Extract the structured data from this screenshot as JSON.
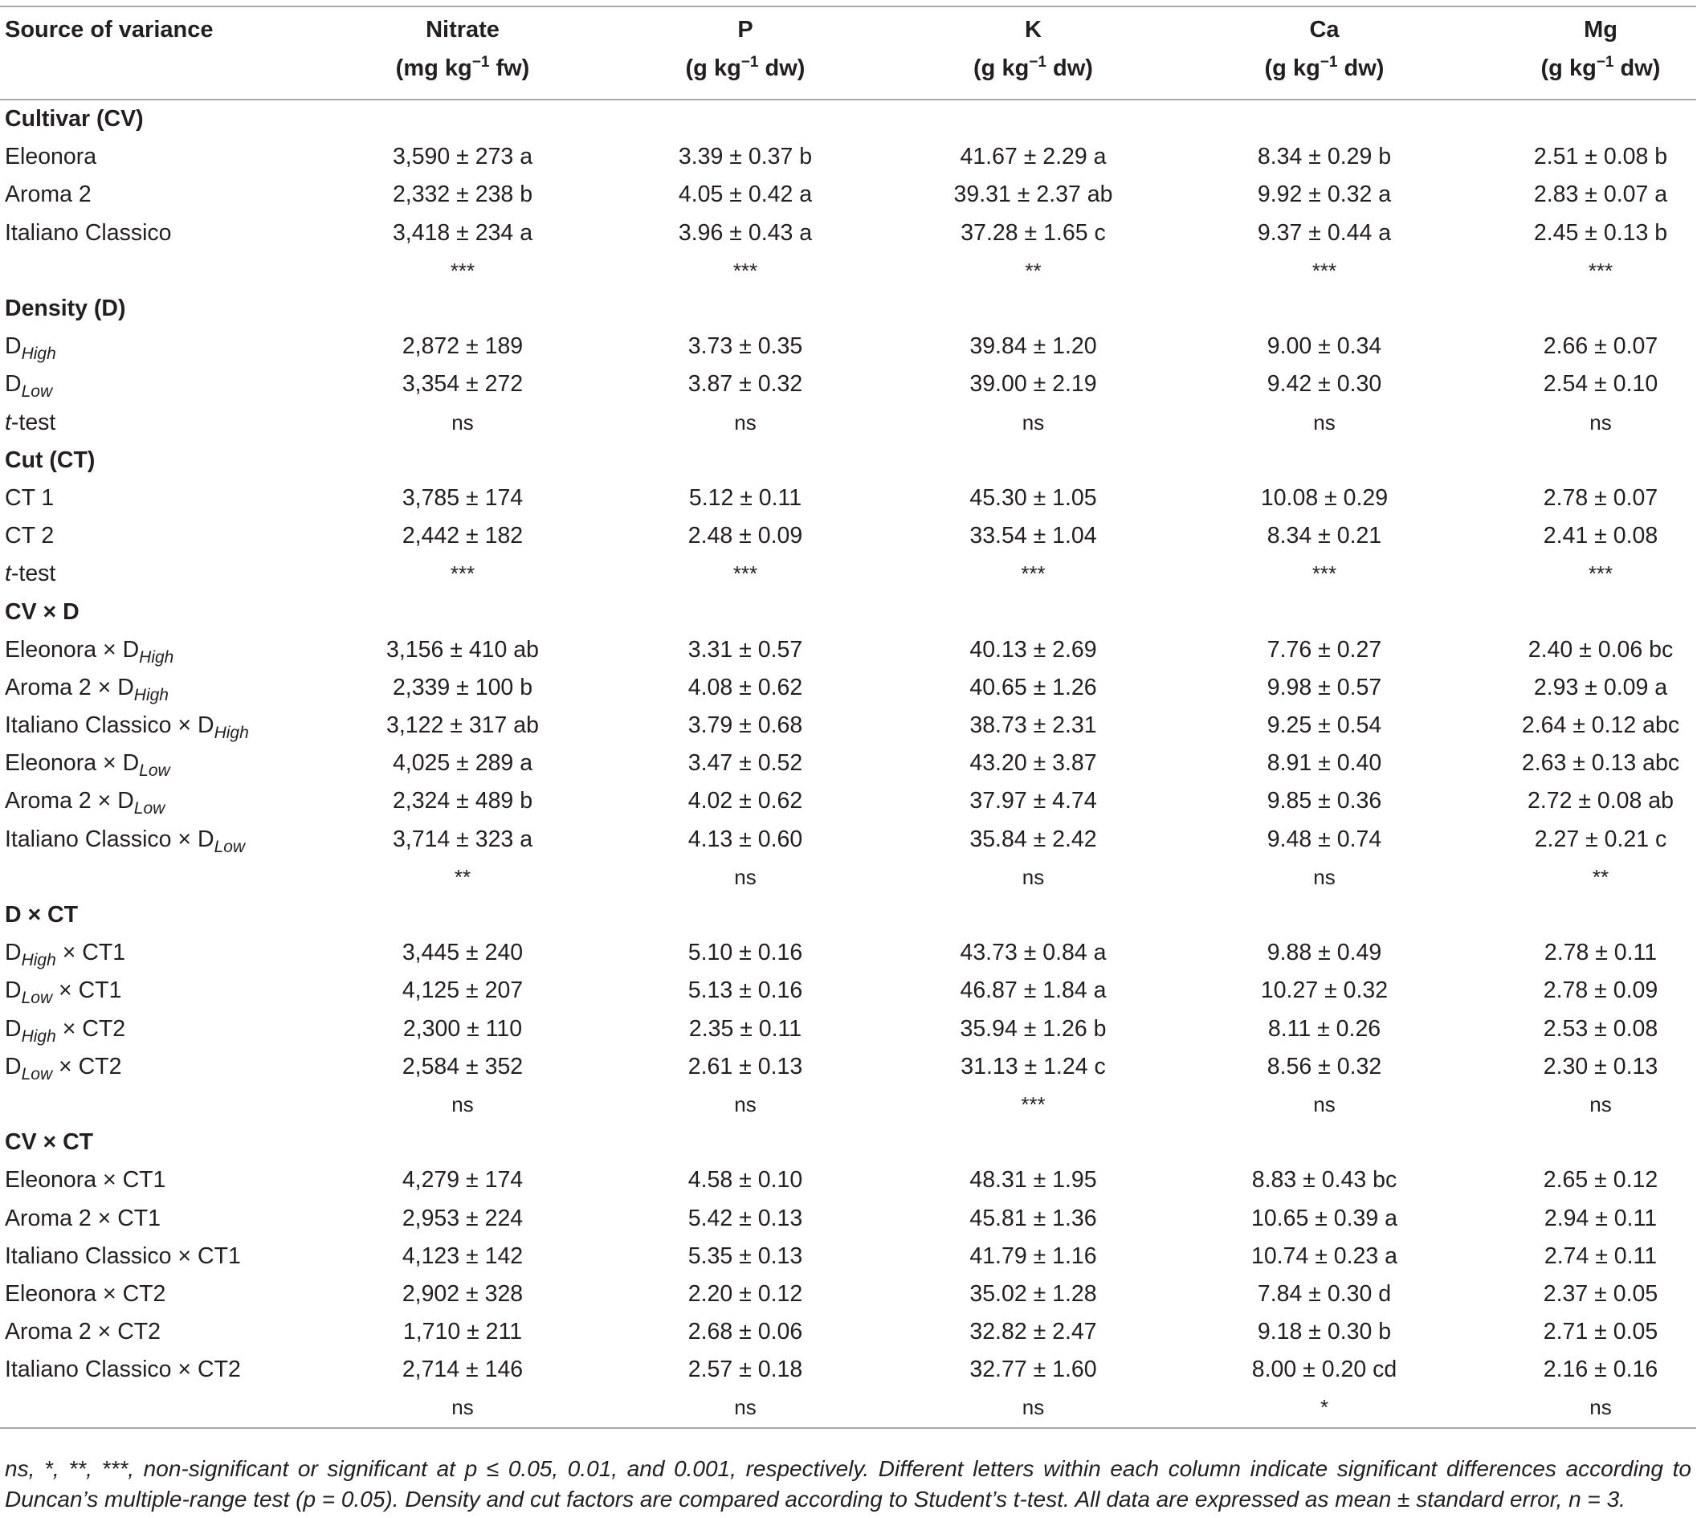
{
  "header": {
    "source": "Source of variance",
    "columns": [
      {
        "name": "Nitrate",
        "unit_pre": "(mg kg",
        "unit_exp": "−1",
        "unit_post": " fw)"
      },
      {
        "name": "P",
        "unit_pre": "(g kg",
        "unit_exp": "−1",
        "unit_post": " dw)"
      },
      {
        "name": "K",
        "unit_pre": "(g kg",
        "unit_exp": "−1",
        "unit_post": " dw)"
      },
      {
        "name": "Ca",
        "unit_pre": "(g kg",
        "unit_exp": "−1",
        "unit_post": " dw)"
      },
      {
        "name": "Mg",
        "unit_pre": "(g kg",
        "unit_exp": "−1",
        "unit_post": " dw)"
      }
    ]
  },
  "rows": [
    {
      "type": "group",
      "label": "Cultivar (CV)"
    },
    {
      "type": "data",
      "label": "Eleonora",
      "values": [
        "3,590 ± 273 a",
        "3.39 ± 0.37 b",
        "41.67 ± 2.29 a",
        "8.34 ± 0.29 b",
        "2.51 ± 0.08 b"
      ]
    },
    {
      "type": "data",
      "label": "Aroma 2",
      "values": [
        "2,332 ± 238 b",
        "4.05 ± 0.42 a",
        "39.31 ± 2.37 ab",
        "9.92 ± 0.32 a",
        "2.83 ± 0.07 a"
      ]
    },
    {
      "type": "data",
      "label": "Italiano Classico",
      "values": [
        "3,418 ± 234 a",
        "3.96 ± 0.43 a",
        "37.28 ± 1.65 c",
        "9.37 ± 0.44 a",
        "2.45 ± 0.13 b"
      ]
    },
    {
      "type": "sig",
      "label": "",
      "values": [
        "***",
        "***",
        "**",
        "***",
        "***"
      ]
    },
    {
      "type": "group",
      "label": "Density (D)"
    },
    {
      "type": "data",
      "label": "D",
      "sub": "High",
      "values": [
        "2,872 ± 189",
        "3.73 ± 0.35",
        "39.84 ± 1.20",
        "9.00 ± 0.34",
        "2.66 ± 0.07"
      ]
    },
    {
      "type": "data",
      "label": "D",
      "sub": "Low",
      "values": [
        "3,354 ± 272",
        "3.87 ± 0.32",
        "39.00 ± 2.19",
        "9.42 ± 0.30",
        "2.54 ± 0.10"
      ]
    },
    {
      "type": "test",
      "label_it": "t",
      "label": "-test",
      "values": [
        "ns",
        "ns",
        "ns",
        "ns",
        "ns"
      ]
    },
    {
      "type": "group",
      "label": "Cut (CT)"
    },
    {
      "type": "data",
      "label": "CT 1",
      "values": [
        "3,785 ± 174",
        "5.12 ± 0.11",
        "45.30 ± 1.05",
        "10.08 ± 0.29",
        "2.78 ± 0.07"
      ]
    },
    {
      "type": "data",
      "label": "CT 2",
      "values": [
        "2,442 ± 182",
        "2.48 ± 0.09",
        "33.54 ± 1.04",
        "8.34 ± 0.21",
        "2.41 ± 0.08"
      ]
    },
    {
      "type": "test",
      "label_it": "t",
      "label": "-test",
      "values": [
        "***",
        "***",
        "***",
        "***",
        "***"
      ]
    },
    {
      "type": "group",
      "label": "CV × D"
    },
    {
      "type": "data",
      "label": "Eleonora × D",
      "sub": "High",
      "values": [
        "3,156 ± 410 ab",
        "3.31 ± 0.57",
        "40.13 ± 2.69",
        "7.76 ± 0.27",
        "2.40 ± 0.06 bc"
      ]
    },
    {
      "type": "data",
      "label": "Aroma 2 × D",
      "sub": "High",
      "values": [
        "2,339 ± 100 b",
        "4.08 ± 0.62",
        "40.65 ± 1.26",
        "9.98 ± 0.57",
        "2.93 ± 0.09 a"
      ]
    },
    {
      "type": "data",
      "label": "Italiano Classico × D",
      "sub": "High",
      "values": [
        "3,122 ± 317 ab",
        "3.79 ± 0.68",
        "38.73 ± 2.31",
        "9.25 ± 0.54",
        "2.64 ± 0.12 abc"
      ]
    },
    {
      "type": "data",
      "label": "Eleonora × D",
      "sub": "Low",
      "values": [
        "4,025 ± 289 a",
        "3.47 ± 0.52",
        "43.20 ± 3.87",
        "8.91 ± 0.40",
        "2.63 ± 0.13 abc"
      ]
    },
    {
      "type": "data",
      "label": "Aroma 2 × D",
      "sub": "Low",
      "values": [
        "2,324 ± 489 b",
        "4.02 ± 0.62",
        "37.97 ± 4.74",
        "9.85 ± 0.36",
        "2.72 ± 0.08 ab"
      ]
    },
    {
      "type": "data",
      "label": "Italiano Classico × D",
      "sub": "Low",
      "values": [
        "3,714 ± 323 a",
        "4.13 ± 0.60",
        "35.84 ± 2.42",
        "9.48 ± 0.74",
        "2.27 ± 0.21 c"
      ]
    },
    {
      "type": "sig",
      "label": "",
      "values": [
        "**",
        "ns",
        "ns",
        "ns",
        "**"
      ]
    },
    {
      "type": "group",
      "label": "D × CT"
    },
    {
      "type": "data",
      "label": "D",
      "sub": "High",
      "post": " × CT1",
      "values": [
        "3,445 ± 240",
        "5.10 ± 0.16",
        "43.73 ± 0.84 a",
        "9.88 ± 0.49",
        "2.78 ± 0.11"
      ]
    },
    {
      "type": "data",
      "label": "D",
      "sub": "Low",
      "post": " × CT1",
      "values": [
        "4,125 ± 207",
        "5.13 ± 0.16",
        "46.87 ± 1.84 a",
        "10.27 ± 0.32",
        "2.78 ± 0.09"
      ]
    },
    {
      "type": "data",
      "label": "D",
      "sub": "High",
      "post": " × CT2",
      "values": [
        "2,300 ± 110",
        "2.35 ± 0.11",
        "35.94 ± 1.26 b",
        "8.11 ± 0.26",
        "2.53 ± 0.08"
      ]
    },
    {
      "type": "data",
      "label": "D",
      "sub": "Low",
      "post": " × CT2",
      "values": [
        "2,584 ± 352",
        "2.61 ± 0.13",
        "31.13 ± 1.24 c",
        "8.56 ± 0.32",
        "2.30 ± 0.13"
      ]
    },
    {
      "type": "sig",
      "label": "",
      "values": [
        "ns",
        "ns",
        "***",
        "ns",
        "ns"
      ]
    },
    {
      "type": "group",
      "label": "CV × CT"
    },
    {
      "type": "data",
      "label": "Eleonora × CT1",
      "values": [
        "4,279 ± 174",
        "4.58 ± 0.10",
        "48.31 ± 1.95",
        "8.83 ± 0.43 bc",
        "2.65 ± 0.12"
      ]
    },
    {
      "type": "data",
      "label": "Aroma 2 × CT1",
      "values": [
        "2,953 ± 224",
        "5.42 ± 0.13",
        "45.81 ± 1.36",
        "10.65 ± 0.39 a",
        "2.94 ± 0.11"
      ]
    },
    {
      "type": "data",
      "label": "Italiano Classico × CT1",
      "values": [
        "4,123 ± 142",
        "5.35 ± 0.13",
        "41.79 ± 1.16",
        "10.74 ± 0.23 a",
        "2.74 ± 0.11"
      ]
    },
    {
      "type": "data",
      "label": "Eleonora × CT2",
      "values": [
        "2,902 ± 328",
        "2.20 ± 0.12",
        "35.02 ± 1.28",
        "7.84 ± 0.30 d",
        "2.37 ± 0.05"
      ]
    },
    {
      "type": "data",
      "label": "Aroma 2 × CT2",
      "values": [
        "1,710 ± 211",
        "2.68 ± 0.06",
        "32.82 ± 2.47",
        "9.18 ± 0.30 b",
        "2.71 ± 0.05"
      ]
    },
    {
      "type": "data",
      "label": "Italiano Classico × CT2",
      "values": [
        "2,714 ± 146",
        "2.57 ± 0.18",
        "32.77 ± 1.60",
        "8.00 ± 0.20 cd",
        "2.16 ± 0.16"
      ]
    },
    {
      "type": "sig",
      "label": "",
      "values": [
        "ns",
        "ns",
        "ns",
        "*",
        "ns"
      ]
    }
  ],
  "footnote": "ns, *, **, ***, non-significant or significant at p ≤ 0.05, 0.01, and 0.001, respectively. Different letters within each column indicate significant differences according to Duncan’s multiple-range test (p = 0.05). Density and cut factors are compared according to Student’s t-test. All data are expressed as mean ± standard error, n = 3."
}
